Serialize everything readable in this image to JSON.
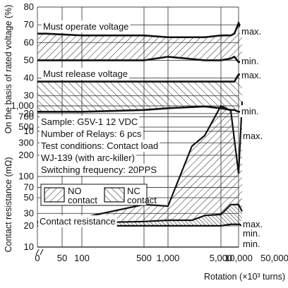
{
  "chart_data": [
    {
      "type": "line",
      "ylabel": "On the basis of rated voltage (%)",
      "ylim": [
        10,
        80
      ],
      "yticks": [
        "10",
        "20",
        "30",
        "40",
        "50",
        "60",
        "70",
        "80"
      ],
      "annotations": [
        "Must operate voltage",
        "Must release voltage"
      ],
      "series": [
        {
          "name": "max.",
          "group": "Must operate voltage",
          "x": [
            0,
            10,
            100,
            500,
            1000,
            3000,
            5000,
            7000,
            8000,
            10000,
            15000
          ],
          "values": [
            65,
            65,
            64,
            64,
            63,
            63,
            64,
            64,
            65,
            71,
            67
          ]
        },
        {
          "name": "min.",
          "group": "Must operate voltage",
          "x": [
            0,
            10,
            100,
            500,
            1000,
            3000,
            5000,
            7000,
            8000,
            10000,
            15000
          ],
          "values": [
            50,
            50,
            50,
            50,
            52,
            50,
            50,
            51,
            52,
            49,
            49
          ]
        },
        {
          "name": "max.",
          "group": "Must release voltage",
          "x": [
            0,
            10,
            100,
            500,
            1000,
            3000,
            5000,
            7000,
            8000,
            10000,
            15000
          ],
          "values": [
            38,
            38,
            38,
            38,
            38,
            38,
            38,
            38,
            38,
            42,
            42
          ]
        },
        {
          "name": "min.",
          "group": "Must release voltage",
          "x": [
            0,
            10,
            100,
            500,
            1000,
            3000,
            5000,
            7000,
            8000,
            10000,
            15000
          ],
          "values": [
            21,
            21,
            21,
            22,
            23,
            24,
            23,
            22,
            22,
            21,
            21
          ]
        }
      ]
    },
    {
      "type": "area",
      "ylabel": "Contact resistance (mΩ)",
      "xlabel": "Rotation (×10³ turns)",
      "xticks": [
        "0",
        "50",
        "100",
        "500",
        "1,000",
        "5,000",
        "10,000",
        "50,000"
      ],
      "yticks": [
        "10",
        "20",
        "30",
        "50",
        "70",
        "100",
        "200",
        "300",
        "500",
        "700",
        "1,000"
      ],
      "ylim": [
        10,
        1500
      ],
      "log_scale": true,
      "annotations": [
        "Sample: G5V-1 12 VDC",
        "Number of Relays: 6 pcs",
        "Test conditions: Contact load",
        "WJ-139 (with arc-killer)",
        "Switching frequency: 20PPS",
        "Contact resistance"
      ],
      "legend": [
        "NO contact",
        "NC contact"
      ],
      "series": [
        {
          "name": "max.",
          "x": [
            0,
            10,
            50,
            100,
            500,
            1000,
            2000,
            3000,
            5000,
            7000,
            10000,
            15000
          ],
          "values": [
            23,
            23,
            24,
            26,
            40,
            38,
            270,
            380,
            1000,
            850,
            110,
            1150
          ]
        },
        {
          "name": "",
          "x": [
            0,
            10,
            50,
            100,
            500,
            1000,
            2000,
            3000,
            5000,
            7000,
            10000,
            15000
          ],
          "values": [
            22,
            22,
            22,
            22,
            23,
            24,
            24,
            28,
            29,
            40,
            40,
            32
          ]
        },
        {
          "name": "min.",
          "x": [
            0,
            10,
            50,
            100,
            500,
            1000,
            2000,
            3000,
            5000,
            7000,
            10000,
            15000
          ],
          "values": [
            20,
            20,
            20,
            20,
            20,
            20,
            20,
            20,
            20,
            21,
            21,
            20
          ]
        }
      ]
    }
  ]
}
